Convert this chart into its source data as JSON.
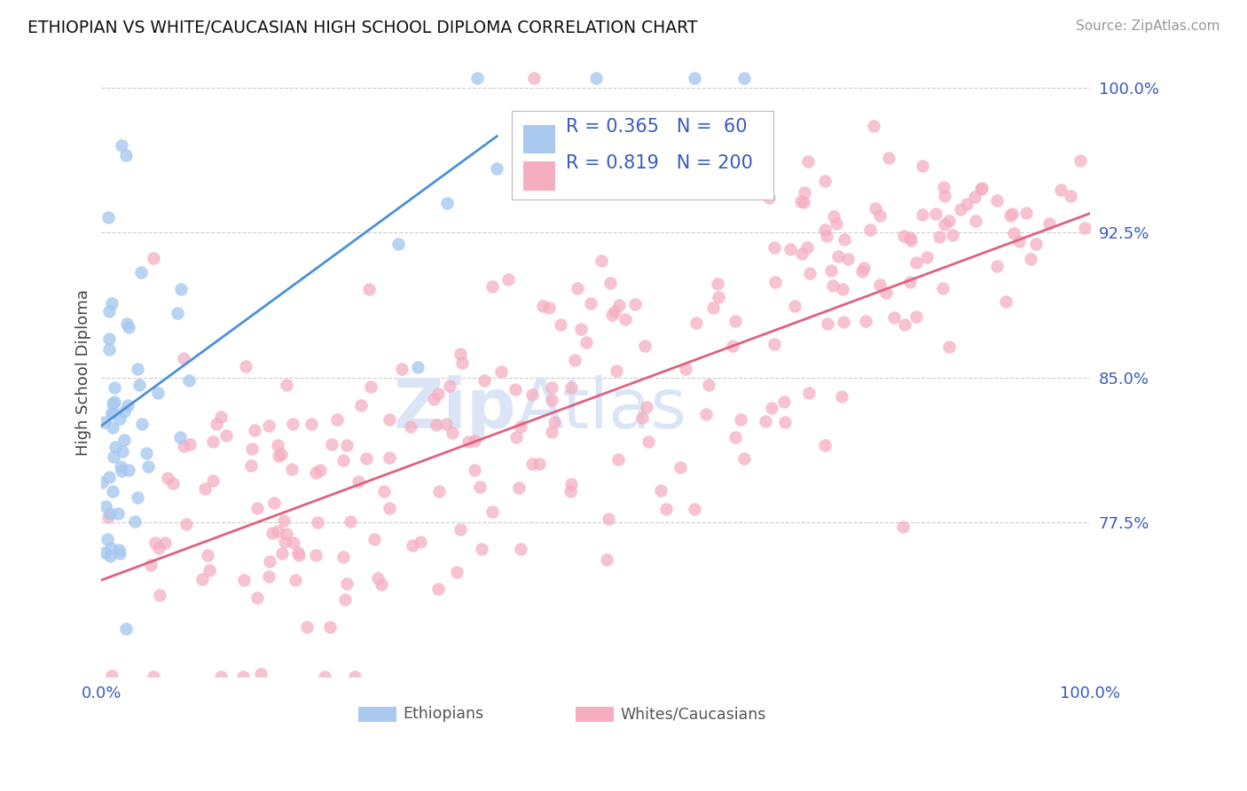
{
  "title": "ETHIOPIAN VS WHITE/CAUCASIAN HIGH SCHOOL DIPLOMA CORRELATION CHART",
  "source": "Source: ZipAtlas.com",
  "ylabel": "High School Diploma",
  "yticks": [
    0.775,
    0.85,
    0.925,
    1.0
  ],
  "ytick_labels": [
    "77.5%",
    "85.0%",
    "92.5%",
    "100.0%"
  ],
  "xlim": [
    0.0,
    1.0
  ],
  "ylim": [
    0.695,
    1.01
  ],
  "blue_R": 0.365,
  "blue_N": 60,
  "pink_R": 0.819,
  "pink_N": 200,
  "blue_color": "#a8c8f0",
  "pink_color": "#f5adc0",
  "blue_line_color": "#4a90d9",
  "pink_line_color": "#e06080",
  "text_color": "#3a5bbf",
  "title_color": "#111111",
  "grid_color": "#cccccc",
  "watermark_color": "#dce5f5",
  "legend_label_blue": "Ethiopians",
  "legend_label_pink": "Whites/Caucasians",
  "bg_color": "#ffffff",
  "blue_line_x0": 0.0,
  "blue_line_y0": 0.825,
  "blue_line_x1": 0.4,
  "blue_line_y1": 0.975,
  "pink_line_x0": 0.0,
  "pink_line_y0": 0.745,
  "pink_line_x1": 1.0,
  "pink_line_y1": 0.935
}
